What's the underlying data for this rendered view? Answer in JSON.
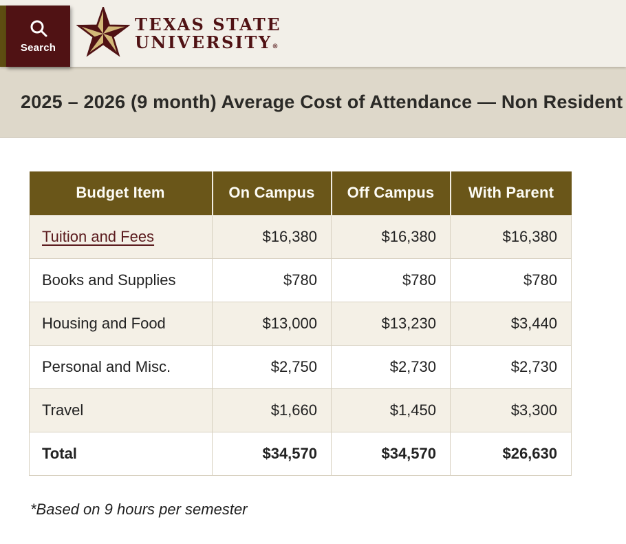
{
  "header": {
    "search_label": "Search",
    "logo_line1": "TEXAS STATE",
    "logo_line2": "UNIVERSITY",
    "logo_reg": "®"
  },
  "banner": {
    "title": "2025 – 2026 (9 month) Average Cost of Attendance — Non Resident"
  },
  "table": {
    "columns": [
      "Budget Item",
      "On Campus",
      "Off Campus",
      "With Parent"
    ],
    "rows": [
      {
        "item": "Tuition and Fees",
        "link": true,
        "on_campus": "$16,380",
        "off_campus": "$16,380",
        "with_parent": "$16,380"
      },
      {
        "item": "Books and Supplies",
        "link": false,
        "on_campus": "$780",
        "off_campus": "$780",
        "with_parent": "$780"
      },
      {
        "item": "Housing and Food",
        "link": false,
        "on_campus": "$13,000",
        "off_campus": "$13,230",
        "with_parent": "$3,440"
      },
      {
        "item": "Personal and Misc.",
        "link": false,
        "on_campus": "$2,750",
        "off_campus": "$2,730",
        "with_parent": "$2,730"
      },
      {
        "item": "Travel",
        "link": false,
        "on_campus": "$1,660",
        "off_campus": "$1,450",
        "with_parent": "$3,300"
      },
      {
        "item": "Total",
        "bold": true,
        "link": false,
        "on_campus": "$34,570",
        "off_campus": "$34,570",
        "with_parent": "$26,630"
      }
    ]
  },
  "footnote": "*Based on 9 hours per semester",
  "icons": {
    "search": "magnifying-glass",
    "logo_star": "texas-state-faceted-star"
  },
  "colors": {
    "maroon": "#501214",
    "olive_header": "#6a5619",
    "olive_strip": "#5e4d11",
    "gold_star": "#d3b878",
    "banner_beige": "#ded8ca",
    "header_cream": "#f2efe8",
    "row_beige": "#f4f0e6",
    "border_tan": "#d8d1c1",
    "link_maroon": "#5a1a1d"
  }
}
